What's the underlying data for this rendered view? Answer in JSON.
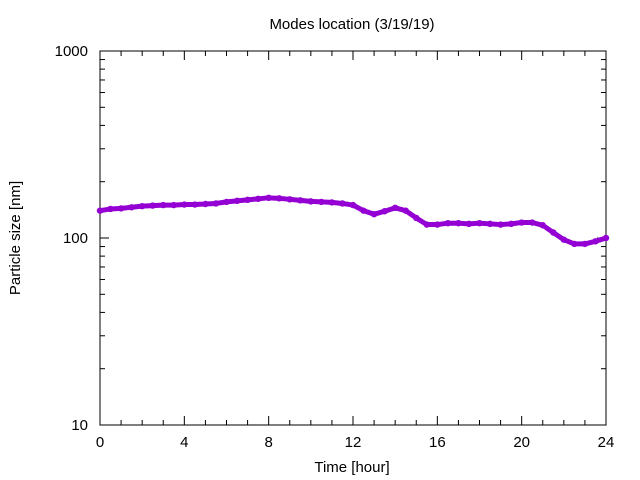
{
  "chart_data": {
    "type": "line",
    "title": "Modes location (3/19/19)",
    "xlabel": "Time [hour]",
    "ylabel": "Particle size [nm]",
    "xlim": [
      0,
      24
    ],
    "ylim": [
      10,
      1000
    ],
    "y_scale": "log",
    "grid": false,
    "x_ticks": [
      0,
      4,
      8,
      12,
      16,
      20,
      24
    ],
    "x_tick_labels": [
      "0",
      "4",
      "8",
      "12",
      "16",
      "20",
      "24"
    ],
    "y_ticks": [
      10,
      100,
      1000
    ],
    "y_tick_labels": [
      "10",
      "100",
      "1000"
    ],
    "colors": {
      "series": "#9400d3",
      "axes": "#000000",
      "background": "#ffffff"
    },
    "series": [
      {
        "x": [
          0,
          0.5,
          1,
          1.5,
          2,
          2.5,
          3,
          3.5,
          4,
          4.5,
          5,
          5.5,
          6,
          6.5,
          7,
          7.5,
          8,
          8.5,
          9,
          9.5,
          10,
          10.5,
          11,
          11.5,
          12,
          12.5,
          13,
          13.5,
          14,
          14.5,
          15,
          15.5,
          16,
          16.5,
          17,
          17.5,
          18,
          18.5,
          19,
          19.5,
          20,
          20.5,
          21,
          21.5,
          22,
          22.5,
          23,
          23.5,
          24
        ],
        "y": [
          140,
          143,
          144,
          146,
          148,
          149,
          150,
          150,
          151,
          151,
          152,
          153,
          156,
          158,
          160,
          162,
          164,
          163,
          161,
          159,
          157,
          156,
          155,
          153,
          150,
          140,
          134,
          139,
          145,
          140,
          128,
          118,
          118,
          120,
          120,
          119,
          120,
          119,
          118,
          119,
          121,
          121,
          117,
          107,
          98,
          93,
          93,
          96,
          100
        ]
      }
    ]
  }
}
